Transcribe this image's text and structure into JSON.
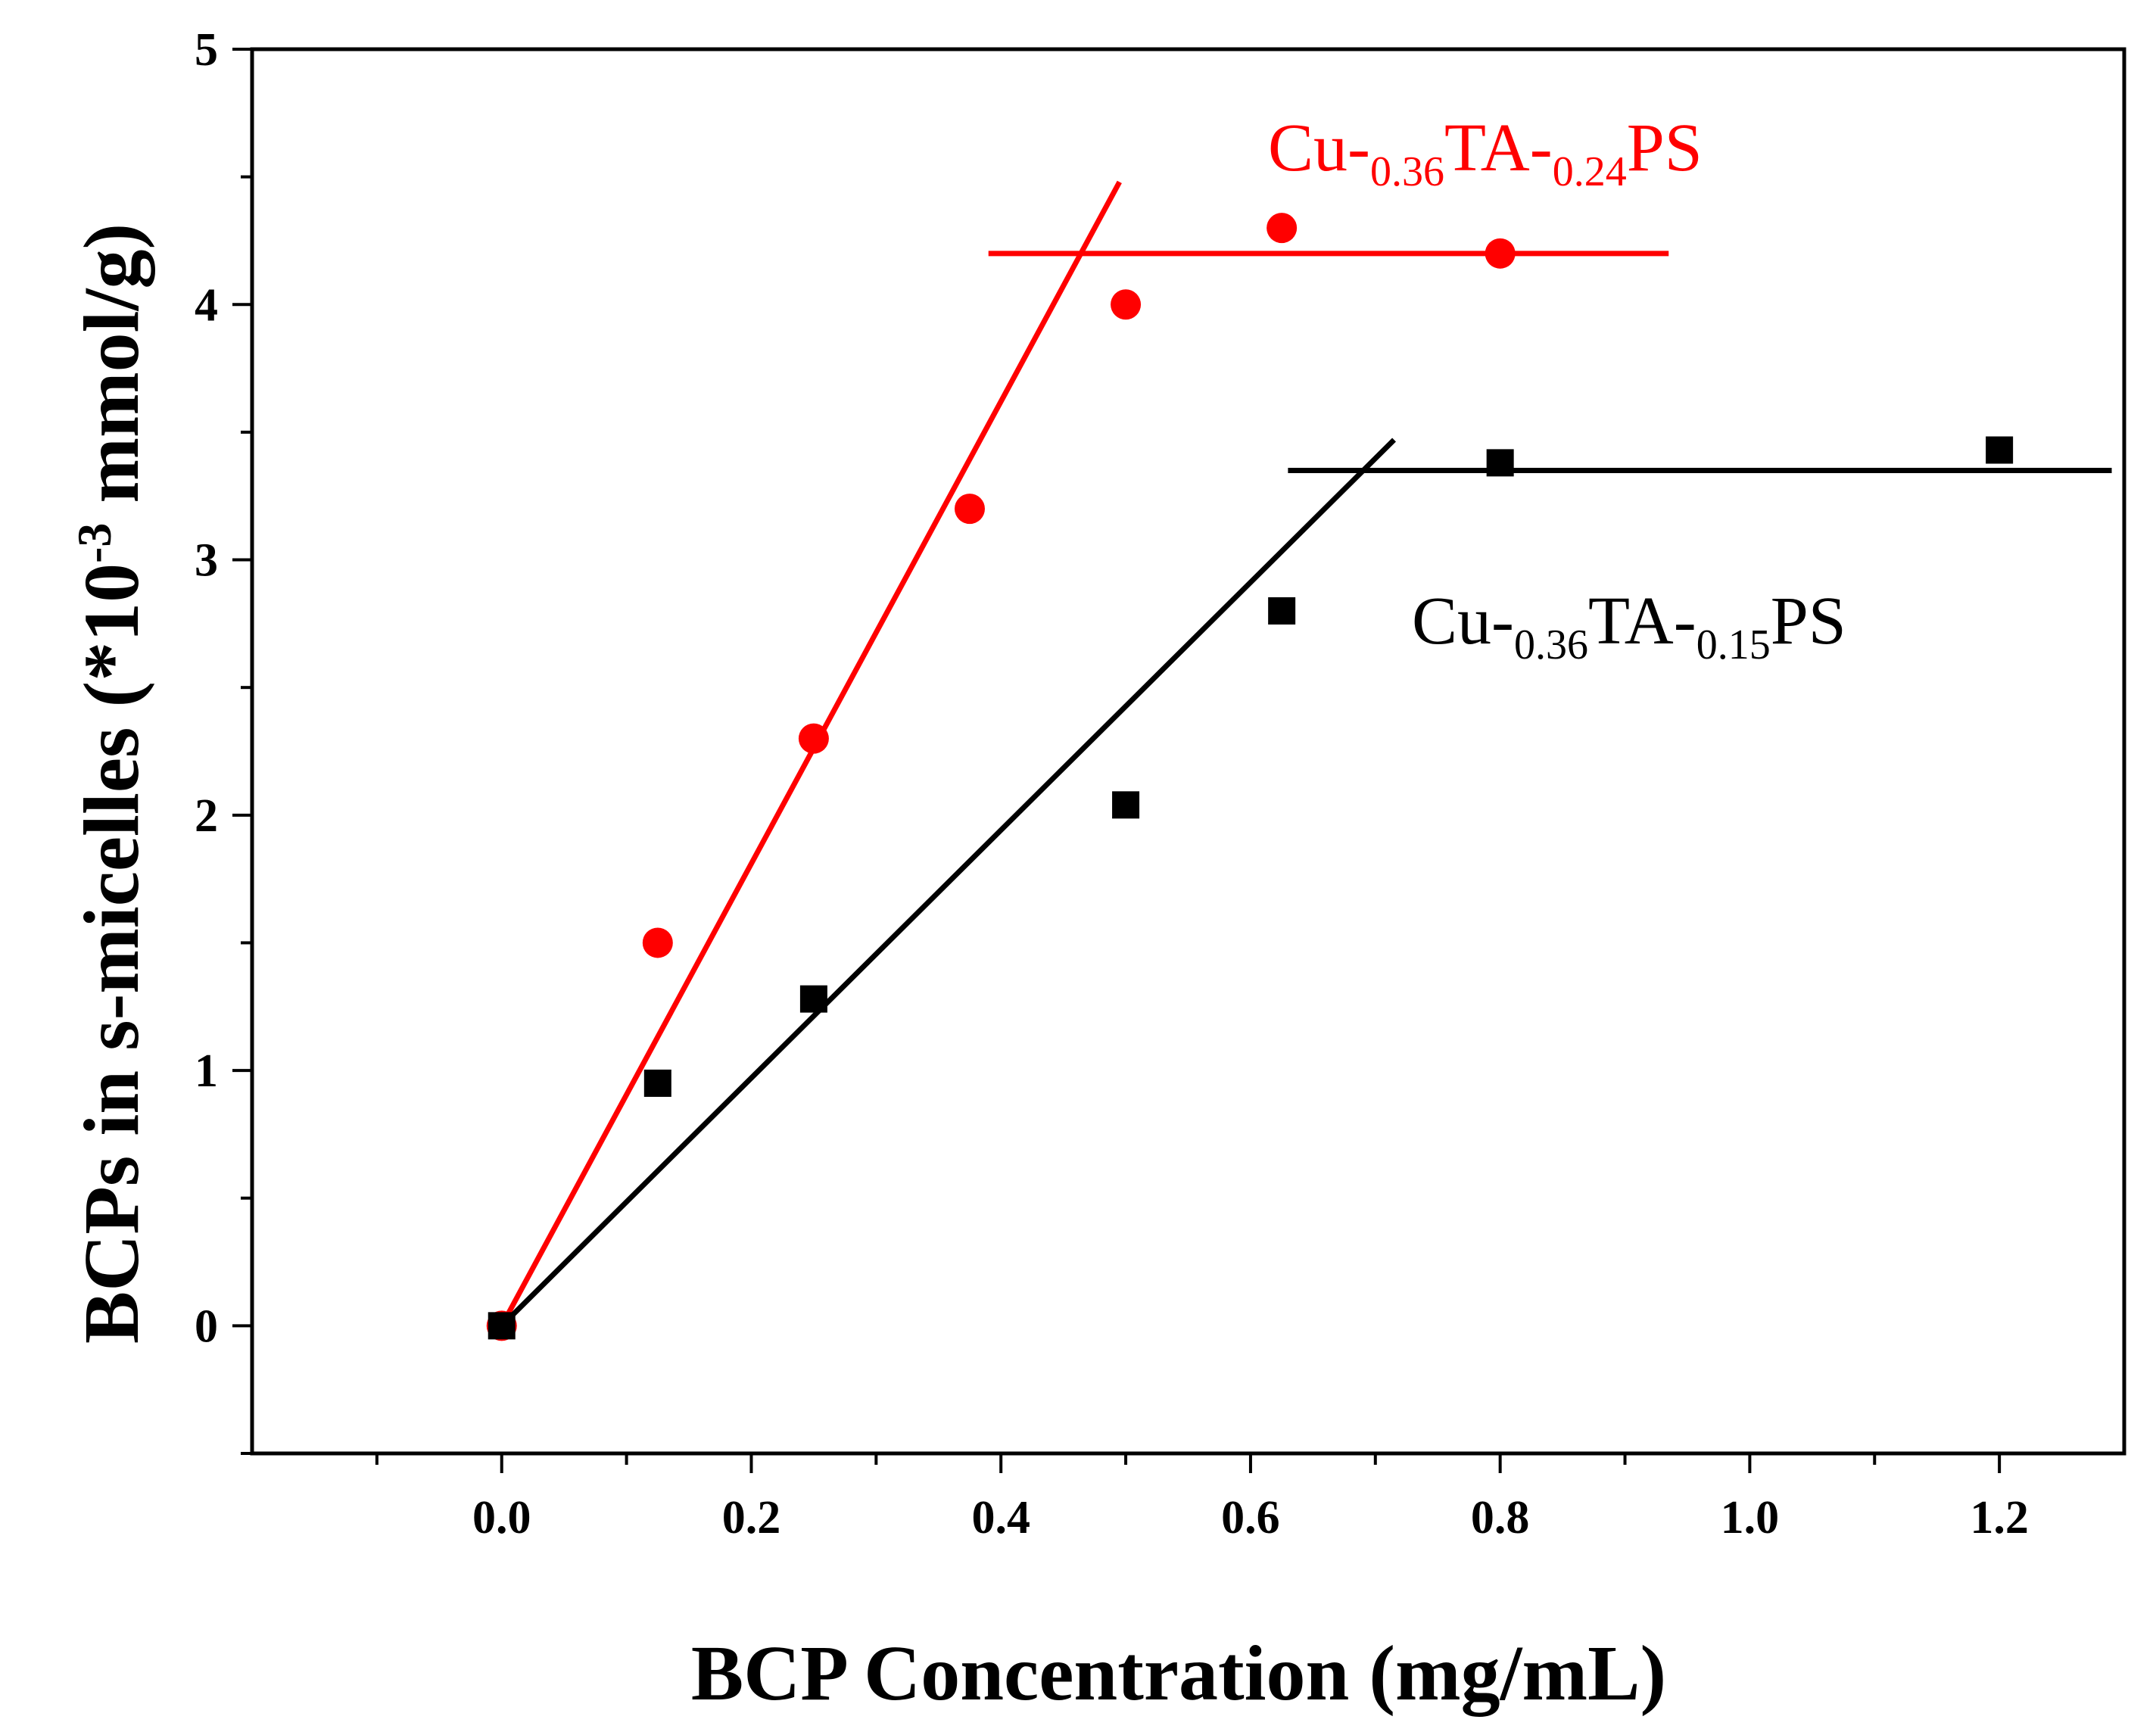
{
  "chart_data": {
    "type": "scatter",
    "xlabel": "BCP Concentration (mg/mL)",
    "ylabel_prefix": "BCPs in s-micelles (*10",
    "ylabel_exp": "-3",
    "ylabel_suffix": " mmol/g)",
    "xlim": [
      -0.2,
      1.3
    ],
    "ylim": [
      -0.5,
      5
    ],
    "x_ticks": [
      0.0,
      0.2,
      0.4,
      0.6,
      0.8,
      1.0,
      1.2
    ],
    "x_tick_labels": [
      "0.0",
      "0.2",
      "0.4",
      "0.6",
      "0.8",
      "1.0",
      "1.2"
    ],
    "x_minor_ticks": [
      -0.1,
      0.1,
      0.3,
      0.5,
      0.7,
      0.9,
      1.1
    ],
    "y_ticks": [
      0,
      1,
      2,
      3,
      4,
      5
    ],
    "y_tick_labels": [
      "0",
      "1",
      "2",
      "3",
      "4",
      "5"
    ],
    "y_minor_ticks": [
      -0.5,
      0.5,
      1.5,
      2.5,
      3.5,
      4.5
    ],
    "series": [
      {
        "name": "Cu-0.36TA-0.24PS",
        "label_parts": [
          "Cu-",
          "0.36",
          "TA-",
          "0.24",
          "PS"
        ],
        "color": "#ff0000",
        "marker": "circle",
        "x": [
          0.0,
          0.125,
          0.25,
          0.375,
          0.5,
          0.625,
          0.8
        ],
        "y": [
          0.0,
          1.5,
          2.3,
          3.2,
          4.0,
          4.3,
          4.2
        ],
        "fit_lines": [
          {
            "x": [
              0.0,
              0.495
            ],
            "y": [
              0.0,
              4.48
            ]
          },
          {
            "x": [
              0.39,
              0.935
            ],
            "y": [
              4.2,
              4.2
            ]
          }
        ]
      },
      {
        "name": "Cu-0.36TA-0.15PS",
        "label_parts": [
          "Cu-",
          "0.36",
          "TA-",
          "0.15",
          "PS"
        ],
        "color": "#000000",
        "marker": "square",
        "x": [
          0.0,
          0.125,
          0.25,
          0.5,
          0.625,
          0.8,
          1.2
        ],
        "y": [
          0.0,
          0.95,
          1.28,
          2.04,
          2.8,
          3.38,
          3.43
        ],
        "fit_lines": [
          {
            "x": [
              0.0,
              0.715
            ],
            "y": [
              0.0,
              3.47
            ]
          },
          {
            "x": [
              0.63,
              1.29
            ],
            "y": [
              3.35,
              3.35
            ]
          }
        ]
      }
    ]
  }
}
